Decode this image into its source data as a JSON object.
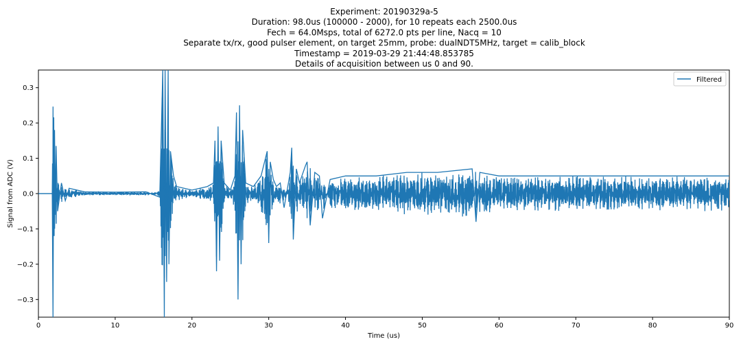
{
  "chart_data": {
    "type": "line",
    "title_lines": [
      "Experiment: 20190329a-5",
      "Duration: 98.0us (100000 - 2000), for 10 repeats each 2500.0us",
      "Fech = 64.0Msps, total of 6272.0 pts per line, Nacq = 10",
      "Separate tx/rx, good pulser element, on target 25mm, probe: dualNDT5MHz, target = calib_block",
      "Timestamp = 2019-03-29 21:44:48.853785",
      "Details of acquisition between us 0 and 90."
    ],
    "xlabel": "Time (us)",
    "ylabel": "Signal from ADC (V)",
    "xlim": [
      0,
      90
    ],
    "ylim": [
      -0.35,
      0.35
    ],
    "xticks": [
      0,
      10,
      20,
      30,
      40,
      50,
      60,
      70,
      80,
      90
    ],
    "yticks": [
      -0.3,
      -0.2,
      -0.1,
      0.0,
      0.1,
      0.2,
      0.3
    ],
    "ytick_labels": [
      "−0.3",
      "−0.2",
      "−0.1",
      "0.0",
      "0.1",
      "0.2",
      "0.3"
    ],
    "grid": false,
    "legend_position": "top-right",
    "series": [
      {
        "name": "Filtered",
        "color": "#1f77b4",
        "x": [
          0,
          1.8,
          1.9,
          2.0,
          2.05,
          2.1,
          2.2,
          2.3,
          2.5,
          3.0,
          3.5,
          4.0,
          6.0,
          10.0,
          14.0,
          15.8,
          16.2,
          16.4,
          16.5,
          16.7,
          16.9,
          17.0,
          17.2,
          17.6,
          18.0,
          20.0,
          22.0,
          22.8,
          23.0,
          23.2,
          23.4,
          23.6,
          23.8,
          24.2,
          25.0,
          25.6,
          25.8,
          26.0,
          26.2,
          26.4,
          26.6,
          27.0,
          28.0,
          29.0,
          29.8,
          30.0,
          30.2,
          30.6,
          31.0,
          31.5,
          32.0,
          32.8,
          33.0,
          33.2,
          33.6,
          34.0,
          34.8,
          35.0,
          35.4,
          36.0,
          36.6,
          37.0,
          38.0,
          40.0,
          44.0,
          48.0,
          52.0,
          56.5,
          57.0,
          57.5,
          60.0,
          65.0,
          70.0,
          75.0,
          80.0,
          85.0,
          90.0
        ],
        "y": [
          0.0,
          0.0,
          -0.35,
          0.216,
          -0.12,
          0.18,
          -0.06,
          0.135,
          -0.05,
          0.03,
          -0.02,
          0.015,
          0.005,
          0.004,
          0.005,
          -0.01,
          0.35,
          -0.35,
          0.35,
          -0.25,
          0.35,
          -0.2,
          0.12,
          0.05,
          0.02,
          0.01,
          0.02,
          0.03,
          0.15,
          -0.22,
          0.19,
          -0.19,
          0.15,
          0.03,
          0.01,
          0.05,
          0.23,
          -0.3,
          0.25,
          -0.2,
          0.18,
          0.03,
          0.02,
          0.05,
          0.12,
          -0.14,
          0.09,
          0.04,
          0.02,
          0.03,
          -0.04,
          0.06,
          0.13,
          -0.13,
          0.07,
          0.03,
          0.08,
          0.09,
          -0.09,
          0.06,
          0.05,
          -0.07,
          0.04,
          0.05,
          0.05,
          0.06,
          0.06,
          0.07,
          -0.08,
          0.06,
          0.05,
          0.05,
          0.05,
          0.05,
          0.05,
          0.05,
          0.05
        ]
      }
    ]
  }
}
